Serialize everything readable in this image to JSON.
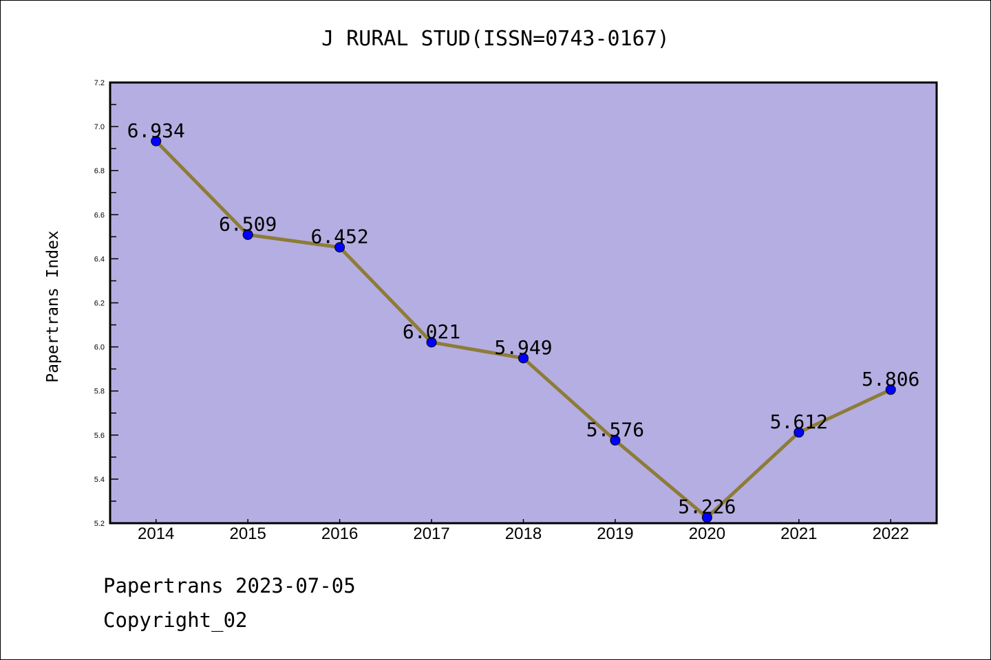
{
  "chart_data": {
    "type": "line",
    "title": "J RURAL STUD(ISSN=0743-0167)",
    "xlabel": "",
    "ylabel": "Papertrans Index",
    "categories": [
      "2014",
      "2015",
      "2016",
      "2017",
      "2018",
      "2019",
      "2020",
      "2021",
      "2022"
    ],
    "values": [
      6.934,
      6.509,
      6.452,
      6.021,
      5.949,
      5.576,
      5.226,
      5.612,
      5.806
    ],
    "data_labels": [
      "6.934",
      "6.509",
      "6.452",
      "6.021",
      "5.949",
      "5.576",
      "5.226",
      "5.612",
      "5.806"
    ],
    "ylim": [
      5.2,
      7.2
    ],
    "yticks": [
      "5.2",
      "5.4",
      "5.6",
      "5.8",
      "6.0",
      "6.2",
      "6.4",
      "6.6",
      "6.8",
      "7.0",
      "7.2"
    ],
    "grid": false,
    "colors": {
      "plot_bg": "#b5aee2",
      "line": "#8c7c38",
      "marker": "#0000ff"
    }
  },
  "footer": {
    "line1": "Papertrans 2023-07-05",
    "line2": "Copyright_02"
  }
}
